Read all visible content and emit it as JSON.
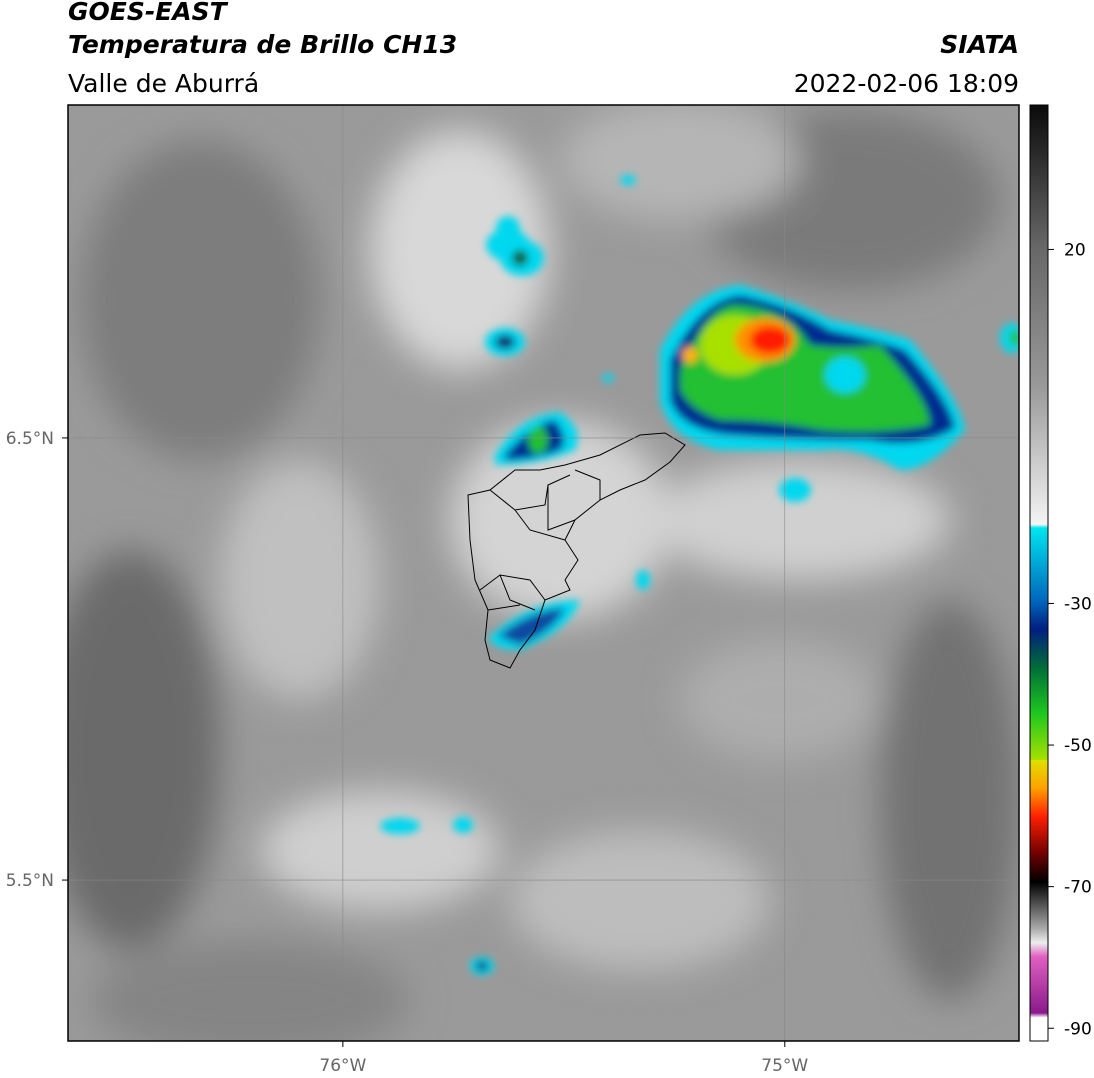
{
  "header": {
    "title": "GOES-EAST",
    "subtitle": "Temperatura de Brillo CH13",
    "region": "Valle de Aburrá",
    "source": "SIATA",
    "datetime": "2022-02-06 18:09"
  },
  "map": {
    "xlim": [
      -76.622,
      -74.47
    ],
    "ylim": [
      5.136,
      7.253
    ],
    "xticks": [
      {
        "value": -76,
        "label": "76°W"
      },
      {
        "value": -75,
        "label": "75°W"
      }
    ],
    "yticks": [
      {
        "value": 6.5,
        "label": "6.5°N"
      },
      {
        "value": 5.5,
        "label": "5.5°N"
      }
    ],
    "grid": true
  },
  "colorbar": {
    "lim": [
      40.4,
      -91.8
    ],
    "ticks": [
      20,
      -30,
      -50,
      -70,
      -90
    ]
  }
}
